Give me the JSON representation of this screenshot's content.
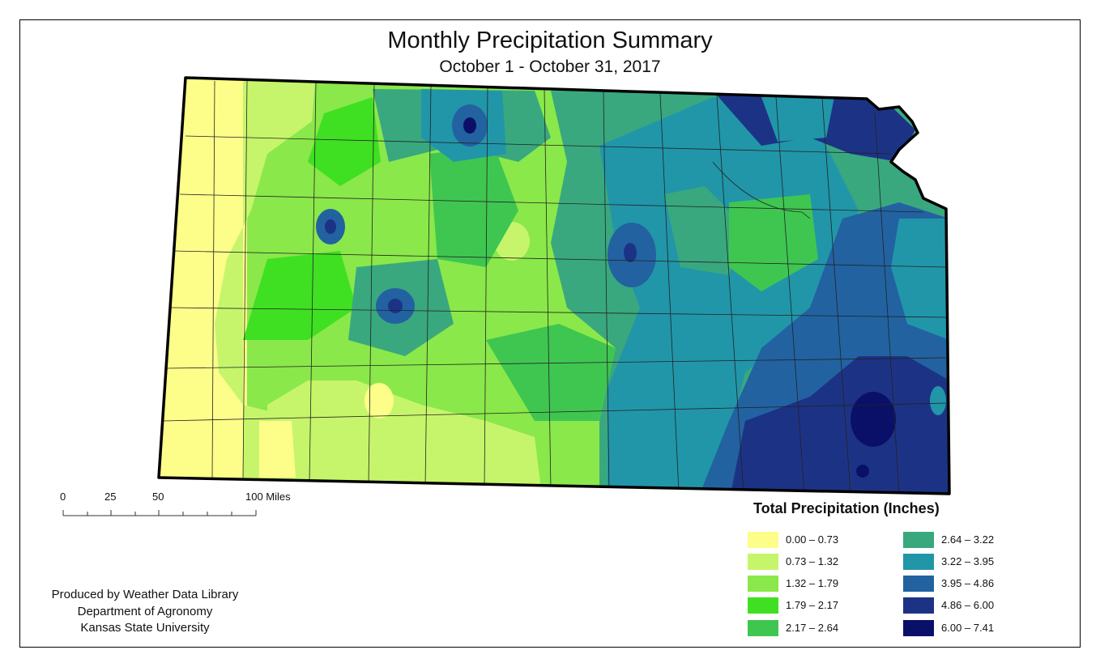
{
  "title": "Monthly Precipitation Summary",
  "subtitle": "October 1 - October 31, 2017",
  "legend": {
    "title": "Total Precipitation (Inches)",
    "items": [
      {
        "label": "0.00 – 0.73",
        "color": "#fdfd8a"
      },
      {
        "label": "0.73 – 1.32",
        "color": "#c6f56b"
      },
      {
        "label": "1.32 – 1.79",
        "color": "#8ae84a"
      },
      {
        "label": "1.79 – 2.17",
        "color": "#3fe022"
      },
      {
        "label": "2.17 – 2.64",
        "color": "#3fc651"
      },
      {
        "label": "2.64 – 3.22",
        "color": "#39a87f"
      },
      {
        "label": "3.22 – 3.95",
        "color": "#2196a9"
      },
      {
        "label": "3.95 – 4.86",
        "color": "#2262a1"
      },
      {
        "label": "4.86 – 6.00",
        "color": "#1c3385"
      },
      {
        "label": "6.00 – 7.41",
        "color": "#0a1068"
      }
    ]
  },
  "scale_bar": {
    "labels": [
      "0",
      "25",
      "50",
      "100 Miles"
    ]
  },
  "credits": {
    "line1": "Produced by Weather Data Library",
    "line2": "Department of Agronomy",
    "line3": "Kansas State University"
  }
}
